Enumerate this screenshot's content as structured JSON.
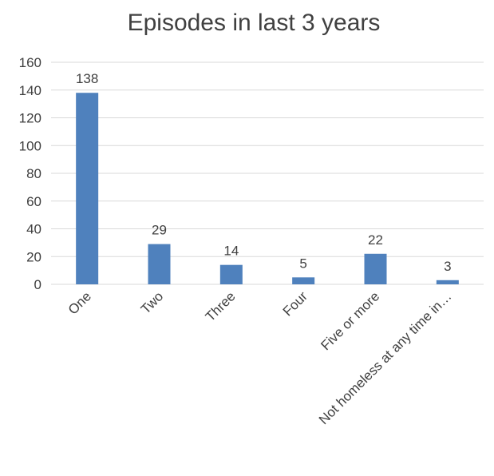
{
  "chart_data": {
    "type": "bar",
    "title": "Episodes in last 3 years",
    "xlabel": "",
    "ylabel": "",
    "categories": [
      "One",
      "Two",
      "Three",
      "Four",
      "Five or more",
      "Not homeless at any time in…"
    ],
    "values": [
      138,
      29,
      14,
      5,
      22,
      3
    ],
    "data_labels": [
      "138",
      "29",
      "14",
      "5",
      "22",
      "3"
    ],
    "ylim": [
      0,
      160
    ],
    "yticks": [
      "0",
      "20",
      "40",
      "60",
      "80",
      "100",
      "120",
      "140",
      "160"
    ],
    "grid": true,
    "legend": "none",
    "colors": {
      "bar": "#4F81BD",
      "grid": "#D9D9D9",
      "text": "#404040",
      "title": "#404040"
    }
  }
}
